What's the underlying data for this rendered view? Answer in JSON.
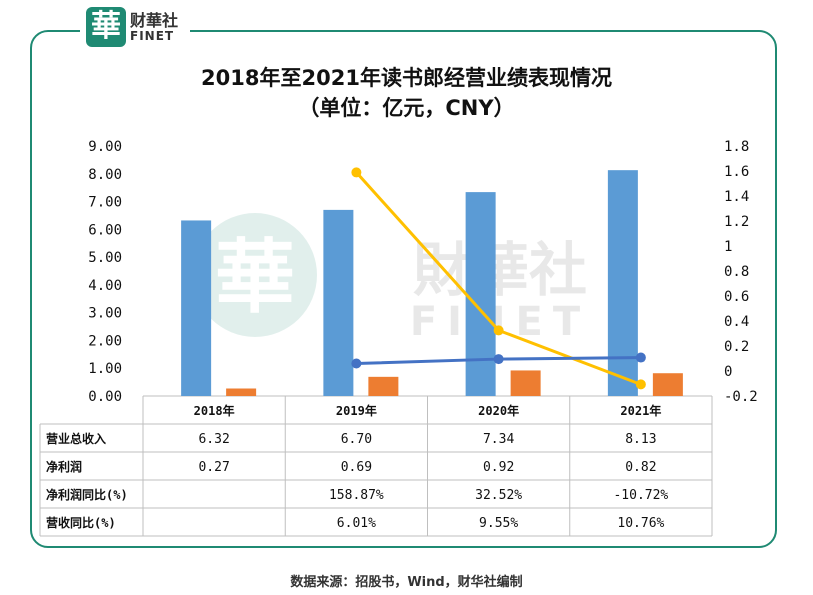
{
  "logo": {
    "seal": "華",
    "cn": "财華社",
    "en": "FINET"
  },
  "title": "2018年至2021年读书郎经营业绩表现情况",
  "subtitle": "（单位：亿元，CNY）",
  "source": "数据来源：招股书，Wind，财华社编制",
  "watermark": {
    "seal": "華",
    "cn": "財華社",
    "en": "FINET"
  },
  "colors": {
    "frame": "#1f8a73",
    "revenue": "#5b9bd5",
    "profit": "#ed7d31",
    "profit_yoy": "#ffc000",
    "revenue_yoy": "#4472c4"
  },
  "chart_data": {
    "type": "bar",
    "categories": [
      "2018年",
      "2019年",
      "2020年",
      "2021年"
    ],
    "left_axis": {
      "ylim": [
        0,
        9
      ],
      "ticks": [
        "0.00",
        "1.00",
        "2.00",
        "3.00",
        "4.00",
        "5.00",
        "6.00",
        "7.00",
        "8.00",
        "9.00"
      ]
    },
    "right_axis": {
      "ylim": [
        -0.2,
        1.8
      ],
      "ticks": [
        "-0.2",
        "0",
        "0.2",
        "0.4",
        "0.6",
        "0.8",
        "1",
        "1.2",
        "1.4",
        "1.6",
        "1.8"
      ]
    },
    "series": [
      {
        "name": "营业总收入",
        "kind": "bar",
        "axis": "left",
        "values": [
          6.32,
          6.7,
          7.34,
          8.13
        ],
        "labels": [
          "6.32",
          "6.70",
          "7.34",
          "8.13"
        ]
      },
      {
        "name": "净利润",
        "kind": "bar",
        "axis": "left",
        "values": [
          0.27,
          0.69,
          0.92,
          0.82
        ],
        "labels": [
          "0.27",
          "0.69",
          "0.92",
          "0.82"
        ]
      },
      {
        "name": "净利润同比(%)",
        "kind": "line",
        "axis": "right",
        "values": [
          null,
          1.5887,
          0.3252,
          -0.1072
        ],
        "labels": [
          "",
          "158.87%",
          "32.52%",
          "-10.72%"
        ]
      },
      {
        "name": "营收同比(%)",
        "kind": "line",
        "axis": "right",
        "values": [
          null,
          0.0601,
          0.0955,
          0.1076
        ],
        "labels": [
          "",
          "6.01%",
          "9.55%",
          "10.76%"
        ]
      }
    ]
  }
}
